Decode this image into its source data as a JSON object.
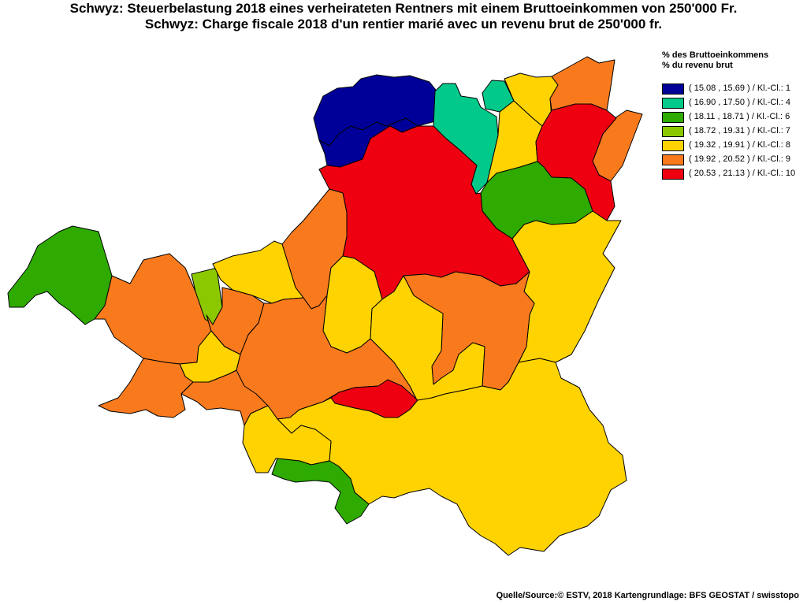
{
  "title": {
    "de": "Schwyz: Steuerbelastung 2018 eines verheirateten Rentners mit einem Bruttoeinkommen von 250'000 Fr.",
    "fr": "Schwyz: Charge fiscale 2018 d'un rentier marié avec un revenu brut de 250'000 fr."
  },
  "legend": {
    "heading_de": "% des Bruttoeinkommens",
    "heading_fr": "% du revenu brut",
    "classes": [
      {
        "label": "( 15.08 , 15.69 ) / Kl.-Cl.: 1",
        "color": "#000099"
      },
      {
        "label": "( 16.90 , 17.50 ) / Kl.-Cl.: 4",
        "color": "#00C98A"
      },
      {
        "label": "( 18.11 , 18.71 ) / Kl.-Cl.: 6",
        "color": "#2EAA00"
      },
      {
        "label": "( 18.72 , 19.31 ) / Kl.-Cl.: 7",
        "color": "#8CC800"
      },
      {
        "label": "( 19.32 , 19.91 ) / Kl.-Cl.: 8",
        "color": "#FFD300"
      },
      {
        "label": "( 19.92 , 20.52 ) / Kl.-Cl.: 9",
        "color": "#F97A1D"
      },
      {
        "label": "( 20.53 , 21.13 ) / Kl.-Cl.: 10",
        "color": "#EE0010"
      }
    ]
  },
  "map": {
    "regions": [
      {
        "name": "north-blue-a",
        "class": 1
      },
      {
        "name": "north-blue-b",
        "class": 1
      },
      {
        "name": "north-teal-a",
        "class": 4
      },
      {
        "name": "north-teal-b",
        "class": 4
      },
      {
        "name": "north-yellow-a",
        "class": 8
      },
      {
        "name": "north-yellow-b",
        "class": 8
      },
      {
        "name": "northeast-orange-a",
        "class": 9
      },
      {
        "name": "northeast-orange-b",
        "class": 9
      },
      {
        "name": "northeast-red",
        "class": 10
      },
      {
        "name": "east-green",
        "class": 6
      },
      {
        "name": "central-red",
        "class": 10
      },
      {
        "name": "west-green",
        "class": 6
      },
      {
        "name": "west-orange-a",
        "class": 9
      },
      {
        "name": "west-lime",
        "class": 7
      },
      {
        "name": "central-orange-a",
        "class": 9
      },
      {
        "name": "central-yellow-a",
        "class": 8
      },
      {
        "name": "central-yellow-b",
        "class": 8
      },
      {
        "name": "central-orange-b",
        "class": 9
      },
      {
        "name": "east-yellow",
        "class": 8
      },
      {
        "name": "central-orange-c",
        "class": 9
      },
      {
        "name": "central-yellow-c",
        "class": 8
      },
      {
        "name": "west-yellow-a",
        "class": 8
      },
      {
        "name": "southwest-orange",
        "class": 9
      },
      {
        "name": "south-orange-a",
        "class": 9
      },
      {
        "name": "south-red",
        "class": 10
      },
      {
        "name": "south-yellow-large",
        "class": 8
      },
      {
        "name": "south-yellow-b",
        "class": 8
      },
      {
        "name": "south-green",
        "class": 6
      }
    ]
  },
  "source": "Quelle/Source:© ESTV, 2018 Kartengrundlage: BFS GEOSTAT / swisstopo"
}
